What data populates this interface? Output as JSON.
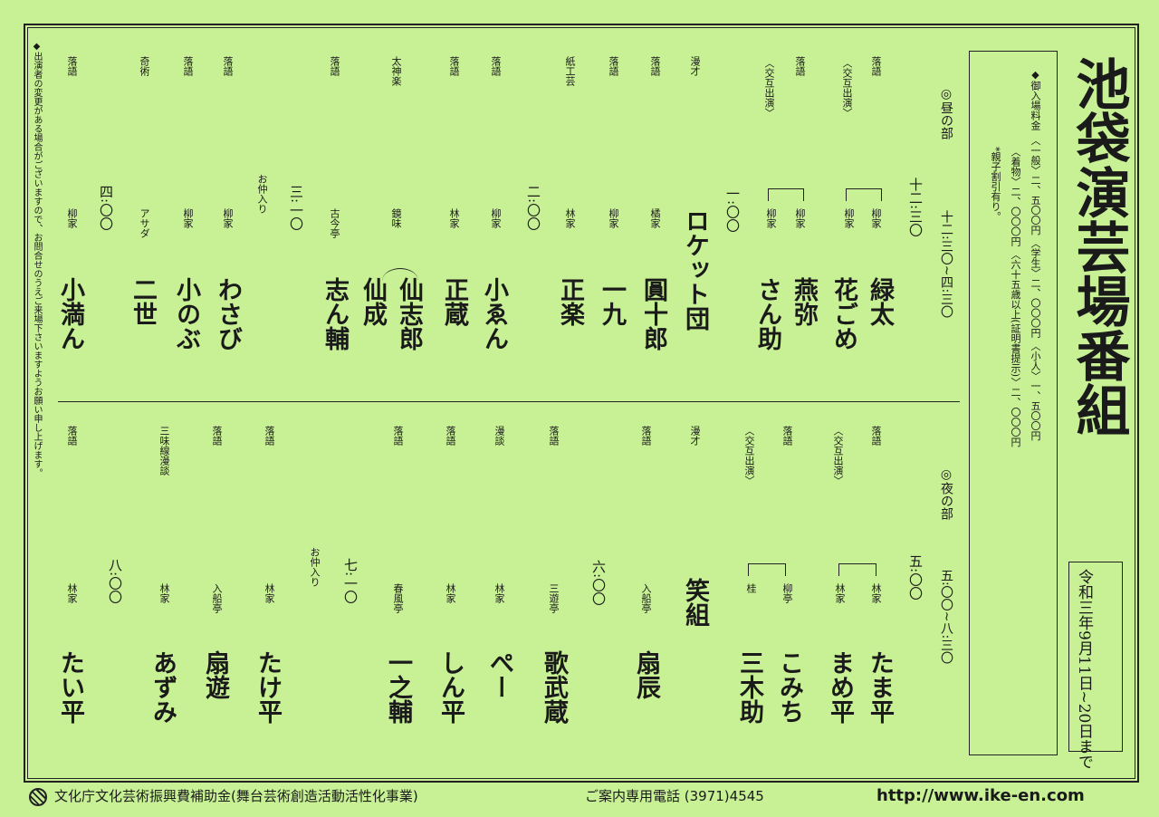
{
  "title": "池袋演芸場番組",
  "dates": "令和三年9月11日~20日まで",
  "admission": {
    "heading": "◆御入場料金",
    "line1": "〈一般〉二、五〇〇円 〈学生〉二、〇〇〇円 〈小人〉一、五〇〇円",
    "line2": "〈着物〉二、〇〇〇円 〈六十五歳以上(証明書提示)〉二、〇〇〇円",
    "line3": "*親子割引有り。"
  },
  "day": {
    "label": "◎昼の部",
    "hours": "十二:三〇~四:三〇",
    "time_start": "十二:三〇",
    "time_1": "一:〇〇",
    "time_2": "二:〇〇",
    "time_3": "三:一〇",
    "time_4": "四:〇〇",
    "nakairi": "お仲入り",
    "alt1": "〈交互出演〉",
    "alt2": "〈交互出演〉",
    "acts": [
      {
        "cat": "落語",
        "fam": "柳家",
        "name": "緑太"
      },
      {
        "cat": "落語",
        "fam": "柳家",
        "name": "花ごめ"
      },
      {
        "cat": "落語",
        "fam": "柳家",
        "name": "燕弥"
      },
      {
        "cat": "",
        "fam": "柳家",
        "name": "さん助"
      },
      {
        "cat": "漫才",
        "fam": "",
        "name": "ロケット団"
      },
      {
        "cat": "落語",
        "fam": "橘家",
        "name": "圓十郎"
      },
      {
        "cat": "落語",
        "fam": "柳家",
        "name": "一九"
      },
      {
        "cat": "紙工芸",
        "fam": "林家",
        "name": "正楽"
      },
      {
        "cat": "落語",
        "fam": "柳家",
        "name": "小ゑん"
      },
      {
        "cat": "落語",
        "fam": "林家",
        "name": "正蔵"
      },
      {
        "cat": "太神楽",
        "fam": "鏡味",
        "name": "仙志郎"
      },
      {
        "cat": "",
        "fam": "",
        "name": "仙成"
      },
      {
        "cat": "落語",
        "fam": "古今亭",
        "name": "志ん輔"
      },
      {
        "cat": "落語",
        "fam": "柳家",
        "name": "わさび"
      },
      {
        "cat": "落語",
        "fam": "柳家",
        "name": "小のぶ"
      },
      {
        "cat": "奇術",
        "fam": "アサダ",
        "name": "二世"
      },
      {
        "cat": "落語",
        "fam": "柳家",
        "name": "小満ん"
      }
    ]
  },
  "night": {
    "label": "◎夜の部",
    "hours": "五:〇〇~八:三〇",
    "time_start": "五:〇〇",
    "time_1": "六:〇〇",
    "time_2": "七:一〇",
    "time_3": "八:〇〇",
    "nakairi": "お仲入り",
    "alt1": "〈交互出演〉",
    "alt2": "〈交互出演〉",
    "acts": [
      {
        "cat": "落語",
        "fam": "林家",
        "name": "たま平"
      },
      {
        "cat": "",
        "fam": "林家",
        "name": "まめ平"
      },
      {
        "cat": "落語",
        "fam": "柳亭",
        "name": "こみち"
      },
      {
        "cat": "",
        "fam": "桂",
        "name": "三木助"
      },
      {
        "cat": "漫才",
        "fam": "",
        "name": "笑組"
      },
      {
        "cat": "落語",
        "fam": "入船亭",
        "name": "扇辰"
      },
      {
        "cat": "落語",
        "fam": "三遊亭",
        "name": "歌武蔵"
      },
      {
        "cat": "漫談",
        "fam": "林家",
        "name": "ぺー"
      },
      {
        "cat": "落語",
        "fam": "林家",
        "name": "しん平"
      },
      {
        "cat": "落語",
        "fam": "春風亭",
        "name": "一之輔"
      },
      {
        "cat": "落語",
        "fam": "林家",
        "name": "たけ平"
      },
      {
        "cat": "落語",
        "fam": "入船亭",
        "name": "扇遊"
      },
      {
        "cat": "三味線漫談",
        "fam": "林家",
        "name": "あずみ"
      },
      {
        "cat": "落語",
        "fam": "林家",
        "name": "たい平"
      }
    ]
  },
  "note": "◆出演者の変更がある場合がございますので、お問合せのうえご来場下さいますようお願い申し上げます。",
  "footer": {
    "agency": "文化庁文化芸術振興費補助金(舞台芸術創造活動活性化事業)",
    "phone": "ご案内専用電話 (3971)4545",
    "url": "http://www.ike-en.com"
  }
}
